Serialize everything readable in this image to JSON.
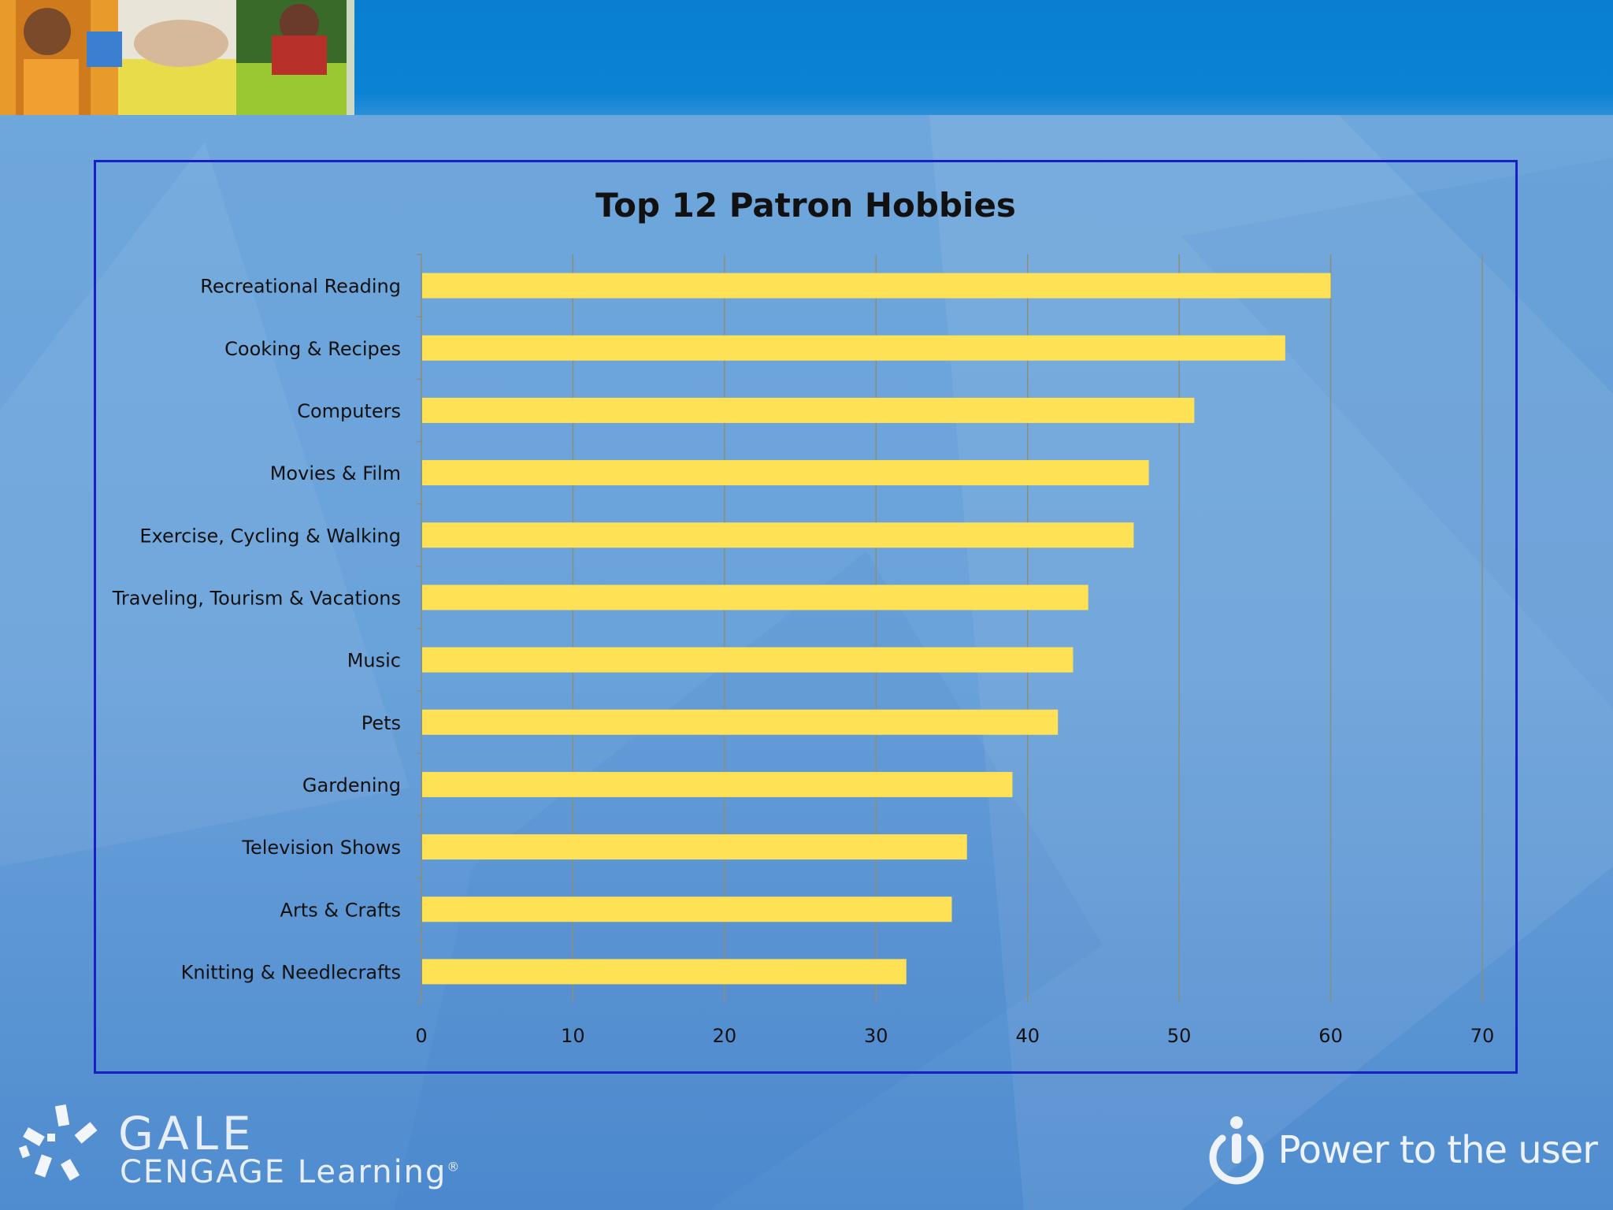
{
  "slide": {
    "logo": {
      "brand_top": "GALE",
      "brand_bottom": "CENGAGE Learning",
      "trademark": "®"
    },
    "tagline": "Power to the user"
  },
  "colors": {
    "top_bar": "#0b82d4",
    "bar_fill": "#ffe156",
    "frame_border": "#1a1fc4",
    "grid": "#8a8f7a",
    "text": "#111111"
  },
  "chart_data": {
    "type": "bar",
    "orientation": "horizontal",
    "title": "Top 12 Patron Hobbies",
    "xlabel": "",
    "ylabel": "",
    "categories": [
      "Recreational Reading",
      "Cooking & Recipes",
      "Computers",
      "Movies & Film",
      "Exercise, Cycling & Walking",
      "Traveling, Tourism & Vacations",
      "Music",
      "Pets",
      "Gardening",
      "Television Shows",
      "Arts & Crafts",
      "Knitting & Needlecrafts"
    ],
    "values": [
      60,
      57,
      51,
      48,
      47,
      44,
      43,
      42,
      39,
      36,
      35,
      32
    ],
    "xlim": [
      0,
      70
    ],
    "xticks": [
      0,
      10,
      20,
      30,
      40,
      50,
      60,
      70
    ],
    "grid": true,
    "legend": "none"
  }
}
